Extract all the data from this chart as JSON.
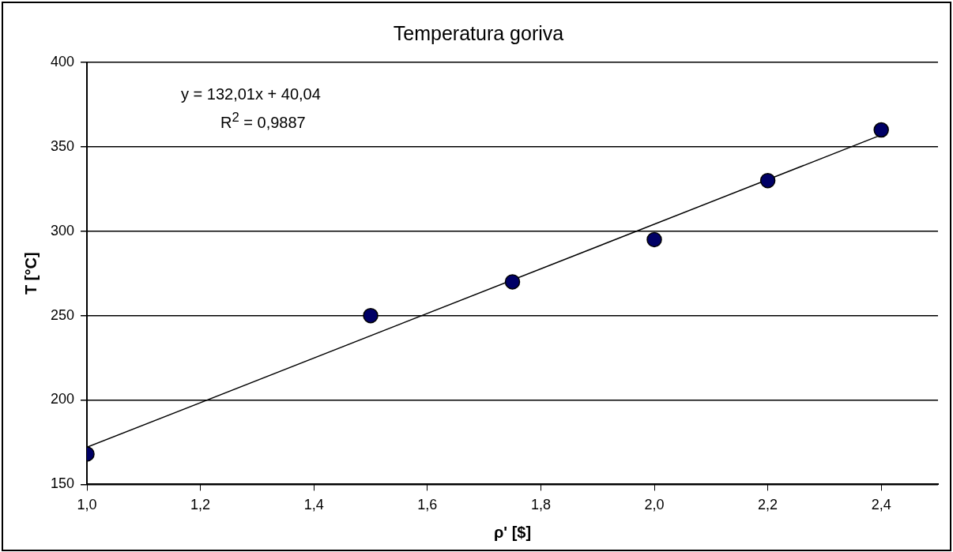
{
  "chart_data": {
    "type": "scatter",
    "title": "Temperatura goriva",
    "xlabel": "ρ' [$]",
    "ylabel": "T [°C]",
    "series": [
      {
        "marker": "circle",
        "color": "#000066",
        "x": [
          1.0,
          1.5,
          1.75,
          2.0,
          2.2,
          2.4
        ],
        "values": [
          168,
          250,
          270,
          295,
          330,
          360
        ]
      },
      {
        "type": "line",
        "marker": "none",
        "color": "#000000",
        "x": [
          1.0,
          2.4
        ],
        "values": [
          172,
          357
        ]
      }
    ],
    "xlim": [
      1.0,
      2.5
    ],
    "xticks": [
      {
        "value": 1.0,
        "label": "1,0"
      },
      {
        "value": 1.2,
        "label": "1,2"
      },
      {
        "value": 1.4,
        "label": "1,4"
      },
      {
        "value": 1.6,
        "label": "1,6"
      },
      {
        "value": 1.8,
        "label": "1,8"
      },
      {
        "value": 2.0,
        "label": "2,0"
      },
      {
        "value": 2.2,
        "label": "2,2"
      },
      {
        "value": 2.4,
        "label": "2,4"
      }
    ],
    "ylim": [
      150,
      400
    ],
    "yticks": [
      150,
      200,
      250,
      300,
      350,
      400
    ],
    "grid": "y",
    "legend": false,
    "annotations": [
      "y = 132,01x + 40,04",
      "R$^{2}$ = 0,9887"
    ]
  }
}
